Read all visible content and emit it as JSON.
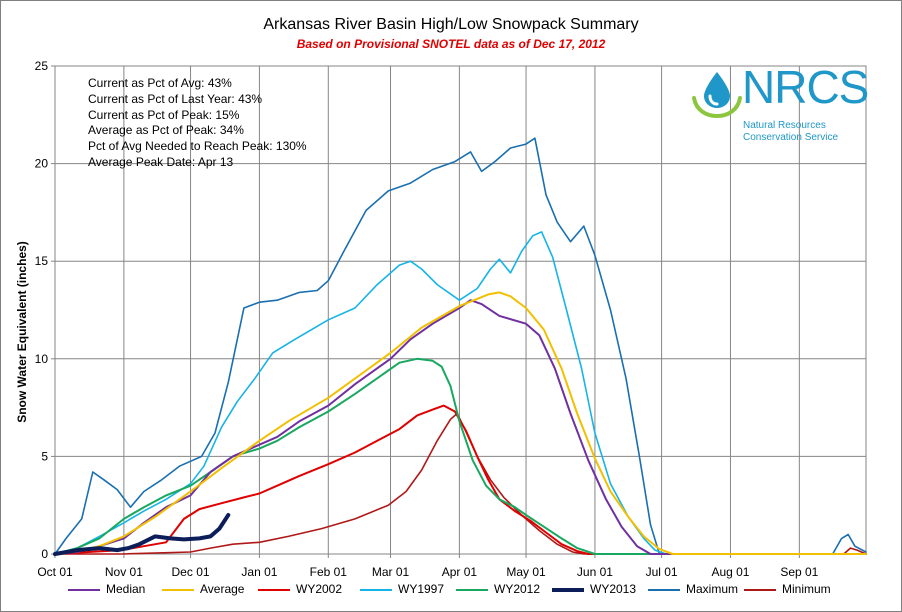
{
  "chart_data": {
    "type": "line",
    "title": "Arkansas River Basin High/Low Snowpack Summary",
    "subtitle": "Based on Provisional SNOTEL data as of Dec 17, 2012",
    "ylabel": "Snow Water Equivalent (inches)",
    "xlabel": "",
    "ylim": [
      0,
      25
    ],
    "yticks": [
      "0",
      "5",
      "10",
      "15",
      "20",
      "25"
    ],
    "xlim": [
      0,
      365
    ],
    "xticks": [
      {
        "label": "Oct 01",
        "day": 0
      },
      {
        "label": "Nov 01",
        "day": 31
      },
      {
        "label": "Dec 01",
        "day": 61
      },
      {
        "label": "Jan 01",
        "day": 92
      },
      {
        "label": "Feb 01",
        "day": 123
      },
      {
        "label": "Mar 01",
        "day": 151
      },
      {
        "label": "Apr 01",
        "day": 182
      },
      {
        "label": "May 01",
        "day": 212
      },
      {
        "label": "Jun 01",
        "day": 243
      },
      {
        "label": "Jul 01",
        "day": 273
      },
      {
        "label": "Aug 01",
        "day": 304
      },
      {
        "label": "Sep 01",
        "day": 335
      }
    ],
    "grid": true,
    "legend_position": "bottom",
    "annotations": [
      "Current  as Pct of Avg: 43%",
      "Current  as Pct of Last Year: 43%",
      "Current  as Pct of Peak: 15%",
      "Average as Pct of Peak: 34%",
      "Pct of Avg Needed to Reach Peak: 130%",
      "Average Peak Date: Apr 13"
    ],
    "series": [
      {
        "name": "Median",
        "color": "#7030a0",
        "width": 2,
        "points": [
          [
            0,
            0
          ],
          [
            10,
            0.1
          ],
          [
            20,
            0.4
          ],
          [
            31,
            0.8
          ],
          [
            40,
            1.6
          ],
          [
            50,
            2.4
          ],
          [
            61,
            3.0
          ],
          [
            70,
            4.2
          ],
          [
            80,
            5.0
          ],
          [
            92,
            5.6
          ],
          [
            100,
            6.0
          ],
          [
            110,
            6.8
          ],
          [
            123,
            7.6
          ],
          [
            135,
            8.7
          ],
          [
            151,
            10.0
          ],
          [
            160,
            11.0
          ],
          [
            170,
            11.8
          ],
          [
            182,
            12.6
          ],
          [
            187,
            13.0
          ],
          [
            192,
            12.8
          ],
          [
            200,
            12.2
          ],
          [
            212,
            11.8
          ],
          [
            218,
            11.2
          ],
          [
            225,
            9.5
          ],
          [
            232,
            7.2
          ],
          [
            240,
            4.8
          ],
          [
            248,
            2.8
          ],
          [
            255,
            1.4
          ],
          [
            262,
            0.4
          ],
          [
            268,
            0
          ],
          [
            365,
            0
          ]
        ]
      },
      {
        "name": "Average",
        "color": "#f2c000",
        "width": 2,
        "points": [
          [
            0,
            0
          ],
          [
            10,
            0.15
          ],
          [
            20,
            0.4
          ],
          [
            31,
            0.9
          ],
          [
            45,
            1.9
          ],
          [
            61,
            3.2
          ],
          [
            75,
            4.4
          ],
          [
            92,
            5.8
          ],
          [
            105,
            6.8
          ],
          [
            123,
            8.0
          ],
          [
            140,
            9.4
          ],
          [
            151,
            10.3
          ],
          [
            165,
            11.6
          ],
          [
            182,
            12.7
          ],
          [
            195,
            13.3
          ],
          [
            200,
            13.4
          ],
          [
            205,
            13.2
          ],
          [
            212,
            12.6
          ],
          [
            220,
            11.5
          ],
          [
            228,
            9.5
          ],
          [
            235,
            7.2
          ],
          [
            243,
            4.9
          ],
          [
            250,
            3.2
          ],
          [
            258,
            1.9
          ],
          [
            265,
            0.9
          ],
          [
            272,
            0.25
          ],
          [
            278,
            0
          ],
          [
            365,
            0
          ]
        ]
      },
      {
        "name": "WY2002",
        "color": "#e00000",
        "width": 2,
        "points": [
          [
            0,
            0
          ],
          [
            15,
            0.1
          ],
          [
            30,
            0.2
          ],
          [
            40,
            0.4
          ],
          [
            50,
            0.6
          ],
          [
            58,
            1.8
          ],
          [
            65,
            2.3
          ],
          [
            75,
            2.6
          ],
          [
            85,
            2.9
          ],
          [
            92,
            3.1
          ],
          [
            100,
            3.5
          ],
          [
            110,
            4.0
          ],
          [
            123,
            4.6
          ],
          [
            135,
            5.2
          ],
          [
            145,
            5.8
          ],
          [
            155,
            6.4
          ],
          [
            163,
            7.1
          ],
          [
            170,
            7.4
          ],
          [
            175,
            7.6
          ],
          [
            180,
            7.3
          ],
          [
            185,
            6.3
          ],
          [
            190,
            5.0
          ],
          [
            195,
            3.8
          ],
          [
            200,
            2.8
          ],
          [
            207,
            2.2
          ],
          [
            214,
            1.7
          ],
          [
            221,
            1.1
          ],
          [
            228,
            0.5
          ],
          [
            235,
            0.15
          ],
          [
            240,
            0
          ],
          [
            365,
            0
          ]
        ]
      },
      {
        "name": "WY1997",
        "color": "#16b4e6",
        "width": 1.6,
        "points": [
          [
            0,
            0
          ],
          [
            10,
            0.3
          ],
          [
            20,
            0.9
          ],
          [
            31,
            1.6
          ],
          [
            40,
            2.2
          ],
          [
            50,
            2.8
          ],
          [
            61,
            3.6
          ],
          [
            67,
            4.5
          ],
          [
            75,
            6.5
          ],
          [
            82,
            7.8
          ],
          [
            90,
            9.0
          ],
          [
            98,
            10.3
          ],
          [
            108,
            11.0
          ],
          [
            123,
            12.0
          ],
          [
            135,
            12.6
          ],
          [
            145,
            13.8
          ],
          [
            155,
            14.8
          ],
          [
            160,
            15.0
          ],
          [
            165,
            14.6
          ],
          [
            172,
            13.8
          ],
          [
            182,
            13.0
          ],
          [
            190,
            13.6
          ],
          [
            196,
            14.6
          ],
          [
            200,
            15.1
          ],
          [
            205,
            14.4
          ],
          [
            210,
            15.5
          ],
          [
            215,
            16.3
          ],
          [
            219,
            16.5
          ],
          [
            224,
            15.2
          ],
          [
            230,
            12.6
          ],
          [
            237,
            9.5
          ],
          [
            243,
            6.2
          ],
          [
            250,
            3.6
          ],
          [
            258,
            1.9
          ],
          [
            265,
            0.8
          ],
          [
            270,
            0.2
          ],
          [
            275,
            0
          ],
          [
            365,
            0
          ]
        ]
      },
      {
        "name": "WY2012",
        "color": "#18a860",
        "width": 2,
        "points": [
          [
            0,
            0
          ],
          [
            10,
            0.3
          ],
          [
            20,
            0.8
          ],
          [
            31,
            1.8
          ],
          [
            40,
            2.4
          ],
          [
            50,
            3.0
          ],
          [
            61,
            3.5
          ],
          [
            70,
            4.2
          ],
          [
            80,
            5.0
          ],
          [
            92,
            5.4
          ],
          [
            100,
            5.8
          ],
          [
            110,
            6.5
          ],
          [
            123,
            7.3
          ],
          [
            135,
            8.2
          ],
          [
            145,
            9.0
          ],
          [
            155,
            9.8
          ],
          [
            163,
            10.0
          ],
          [
            170,
            9.9
          ],
          [
            174,
            9.6
          ],
          [
            178,
            8.6
          ],
          [
            182,
            6.8
          ],
          [
            188,
            4.8
          ],
          [
            194,
            3.5
          ],
          [
            200,
            2.8
          ],
          [
            207,
            2.4
          ],
          [
            212,
            2.0
          ],
          [
            220,
            1.4
          ],
          [
            228,
            0.8
          ],
          [
            235,
            0.3
          ],
          [
            243,
            0
          ],
          [
            365,
            0
          ]
        ]
      },
      {
        "name": "WY2013",
        "color": "#0c1e5a",
        "width": 4,
        "points": [
          [
            0,
            0
          ],
          [
            10,
            0.2
          ],
          [
            20,
            0.3
          ],
          [
            28,
            0.2
          ],
          [
            33,
            0.3
          ],
          [
            38,
            0.5
          ],
          [
            45,
            0.9
          ],
          [
            52,
            0.8
          ],
          [
            58,
            0.75
          ],
          [
            65,
            0.8
          ],
          [
            70,
            0.9
          ],
          [
            74,
            1.3
          ],
          [
            78,
            2.0
          ]
        ]
      },
      {
        "name": "Maximum",
        "color": "#1a6fb0",
        "width": 1.6,
        "points": [
          [
            0,
            0
          ],
          [
            5,
            0.8
          ],
          [
            12,
            1.8
          ],
          [
            17,
            4.2
          ],
          [
            22,
            3.8
          ],
          [
            28,
            3.3
          ],
          [
            34,
            2.4
          ],
          [
            40,
            3.2
          ],
          [
            48,
            3.8
          ],
          [
            56,
            4.5
          ],
          [
            66,
            5.0
          ],
          [
            72,
            6.2
          ],
          [
            78,
            8.8
          ],
          [
            85,
            12.6
          ],
          [
            92,
            12.9
          ],
          [
            100,
            13.0
          ],
          [
            110,
            13.4
          ],
          [
            118,
            13.5
          ],
          [
            123,
            14.0
          ],
          [
            130,
            15.5
          ],
          [
            140,
            17.6
          ],
          [
            150,
            18.6
          ],
          [
            160,
            19.0
          ],
          [
            170,
            19.7
          ],
          [
            180,
            20.1
          ],
          [
            187,
            20.6
          ],
          [
            192,
            19.6
          ],
          [
            198,
            20.1
          ],
          [
            205,
            20.8
          ],
          [
            212,
            21.0
          ],
          [
            216,
            21.3
          ],
          [
            221,
            18.4
          ],
          [
            226,
            17.0
          ],
          [
            232,
            16.0
          ],
          [
            238,
            16.8
          ],
          [
            243,
            15.3
          ],
          [
            250,
            12.5
          ],
          [
            257,
            9.0
          ],
          [
            263,
            5.0
          ],
          [
            268,
            1.5
          ],
          [
            272,
            0
          ],
          [
            350,
            0
          ],
          [
            354,
            0.8
          ],
          [
            357,
            1.0
          ],
          [
            360,
            0.4
          ],
          [
            365,
            0.1
          ]
        ]
      },
      {
        "name": "Minimum",
        "color": "#b01818",
        "width": 1.6,
        "points": [
          [
            0,
            0
          ],
          [
            30,
            0
          ],
          [
            61,
            0.1
          ],
          [
            70,
            0.3
          ],
          [
            80,
            0.5
          ],
          [
            92,
            0.6
          ],
          [
            105,
            0.9
          ],
          [
            120,
            1.3
          ],
          [
            135,
            1.8
          ],
          [
            150,
            2.5
          ],
          [
            158,
            3.2
          ],
          [
            165,
            4.3
          ],
          [
            172,
            5.8
          ],
          [
            178,
            6.9
          ],
          [
            181,
            7.2
          ],
          [
            184,
            6.5
          ],
          [
            190,
            5.0
          ],
          [
            196,
            3.8
          ],
          [
            202,
            2.9
          ],
          [
            210,
            2.0
          ],
          [
            218,
            1.2
          ],
          [
            226,
            0.5
          ],
          [
            233,
            0.1
          ],
          [
            238,
            0
          ],
          [
            355,
            0
          ],
          [
            358,
            0.3
          ],
          [
            361,
            0.2
          ],
          [
            365,
            0
          ]
        ]
      }
    ]
  },
  "logo": {
    "text": "NRCS",
    "sub_line1": "Natural Resources",
    "sub_line2": "Conservation Service",
    "color": "#1f97c8",
    "accent": "#8cc63e"
  }
}
